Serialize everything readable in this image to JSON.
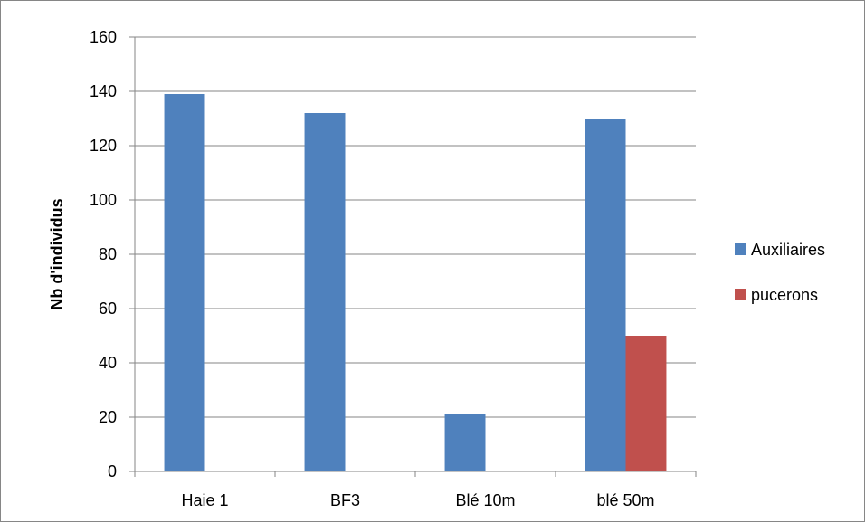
{
  "chart_data": {
    "type": "bar",
    "title": "",
    "xlabel": "",
    "ylabel": "Nb d'individus",
    "ylim": [
      0,
      160
    ],
    "yticks": [
      0,
      20,
      40,
      60,
      80,
      100,
      120,
      140,
      160
    ],
    "categories": [
      "Haie 1",
      "BF3",
      "Blé 10m",
      "blé 50m"
    ],
    "series": [
      {
        "name": "Auxiliaires",
        "color": "#4F81BD",
        "values": [
          139,
          132,
          21,
          130
        ]
      },
      {
        "name": "pucerons",
        "color": "#C0504D",
        "values": [
          0,
          0,
          0,
          50
        ]
      }
    ],
    "grid": "horizontal",
    "legend": "right"
  }
}
